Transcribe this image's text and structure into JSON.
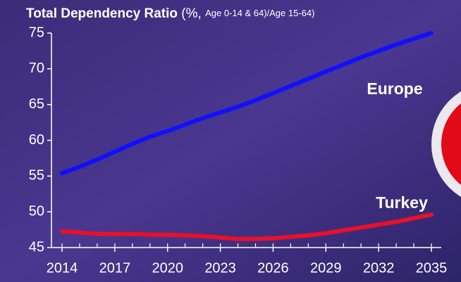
{
  "chart_data": {
    "type": "line",
    "title": "Total Dependency Ratio",
    "title_unit": "(%,",
    "title_note": "Age 0-14 & 64)/Age 15-64)",
    "x": [
      2014,
      2015,
      2016,
      2017,
      2018,
      2019,
      2020,
      2021,
      2022,
      2023,
      2024,
      2025,
      2026,
      2027,
      2028,
      2029,
      2030,
      2031,
      2032,
      2033,
      2034,
      2035
    ],
    "series": [
      {
        "name": "Europe",
        "color": "#1010ff",
        "values": [
          55.4,
          56.3,
          57.3,
          58.4,
          59.5,
          60.5,
          61.3,
          62.2,
          63.1,
          63.9,
          64.7,
          65.6,
          66.6,
          67.6,
          68.6,
          69.6,
          70.6,
          71.6,
          72.5,
          73.4,
          74.2,
          75
        ]
      },
      {
        "name": "Turkey",
        "color": "#e8102a",
        "values": [
          47.3,
          47.1,
          46.9,
          46.9,
          46.9,
          46.8,
          46.8,
          46.7,
          46.6,
          46.4,
          46.2,
          46.2,
          46.3,
          46.5,
          46.7,
          47.0,
          47.4,
          47.8,
          48.2,
          48.6,
          49.1,
          49.6
        ]
      }
    ],
    "xlim": [
      2014,
      2035
    ],
    "xticks": [
      2014,
      2017,
      2020,
      2023,
      2026,
      2029,
      2032,
      2035
    ],
    "ylim": [
      45,
      75
    ],
    "yticks": [
      45,
      50,
      55,
      60,
      65,
      70,
      75
    ]
  }
}
